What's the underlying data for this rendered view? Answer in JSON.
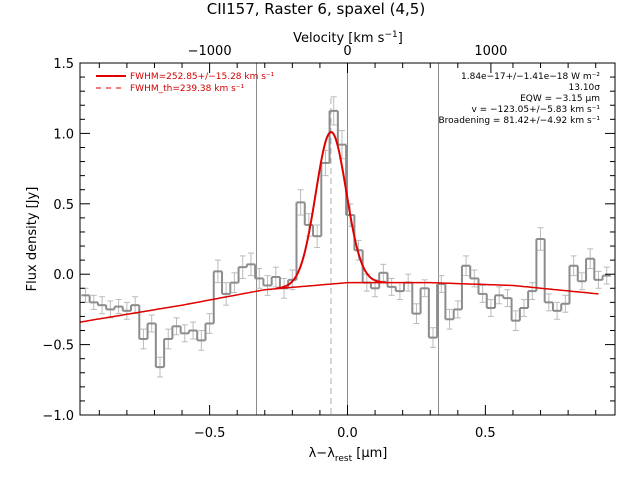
{
  "chart_data": {
    "type": "line",
    "title": "CII157, Raster 6, spaxel (4,5)",
    "xlabel_main": "λ−λ",
    "xlabel_sub": "rest",
    "xlabel_unit": "[μm]",
    "ylabel": "Flux density [Jy]",
    "top_axis_label_main": "Velocity [km s",
    "top_axis_label_exp": "−1",
    "top_axis_label_close": "]",
    "xlim": [
      -0.97,
      0.97
    ],
    "ylim": [
      -1.0,
      1.5
    ],
    "x_ticks": [
      {
        "value": -0.5,
        "label": "−0.5"
      },
      {
        "value": 0.0,
        "label": "0.0"
      },
      {
        "value": 0.5,
        "label": "0.5"
      }
    ],
    "y_ticks": [
      {
        "value": -1.0,
        "label": "−1.0"
      },
      {
        "value": -0.5,
        "label": "−0.5"
      },
      {
        "value": 0.0,
        "label": "0.0"
      },
      {
        "value": 0.5,
        "label": "0.5"
      },
      {
        "value": 1.0,
        "label": "1.0"
      },
      {
        "value": 1.5,
        "label": "1.5"
      }
    ],
    "top_ticks": [
      {
        "x": -0.5,
        "label": "−1000"
      },
      {
        "x": 0.0,
        "label": "0"
      },
      {
        "x": 0.52,
        "label": "1000"
      }
    ],
    "vlines_solid": [
      -0.33,
      0.0,
      0.33
    ],
    "vline_dashed": -0.06,
    "annotations": [
      "1.84e−17+/−1.41e−18 W m⁻²",
      "13.10σ",
      "EQW = −3.15 μm",
      "v = −123.05+/−5.83 km s⁻¹",
      "Broadening = 81.42+/−4.92 km s⁻¹"
    ],
    "legend": [
      {
        "label": "FWHM=252.85+/−15.28 km s⁻¹",
        "style": "solid"
      },
      {
        "label": "FWHM_th=239.38 km s⁻¹",
        "style": "dashed"
      }
    ],
    "colors": {
      "data": "#8c8c8c",
      "fit": "#e00000",
      "vline": "#8c8c8c",
      "axis": "#000000"
    },
    "spectrum": {
      "x": [
        -0.95,
        -0.92,
        -0.89,
        -0.86,
        -0.83,
        -0.8,
        -0.77,
        -0.74,
        -0.71,
        -0.68,
        -0.65,
        -0.62,
        -0.59,
        -0.56,
        -0.53,
        -0.5,
        -0.47,
        -0.44,
        -0.41,
        -0.38,
        -0.35,
        -0.32,
        -0.29,
        -0.26,
        -0.23,
        -0.2,
        -0.17,
        -0.14,
        -0.11,
        -0.08,
        -0.05,
        -0.02,
        0.01,
        0.04,
        0.07,
        0.1,
        0.13,
        0.16,
        0.19,
        0.22,
        0.25,
        0.28,
        0.31,
        0.34,
        0.37,
        0.4,
        0.43,
        0.46,
        0.49,
        0.52,
        0.55,
        0.58,
        0.61,
        0.64,
        0.67,
        0.7,
        0.73,
        0.76,
        0.79,
        0.82,
        0.85,
        0.88,
        0.91,
        0.94
      ],
      "y": [
        -0.15,
        -0.2,
        -0.22,
        -0.25,
        -0.23,
        -0.26,
        -0.22,
        -0.46,
        -0.35,
        -0.66,
        -0.46,
        -0.37,
        -0.42,
        -0.4,
        -0.47,
        -0.35,
        0.02,
        -0.14,
        -0.06,
        0.05,
        0.07,
        -0.03,
        -0.08,
        -0.02,
        -0.1,
        -0.04,
        0.51,
        0.35,
        0.27,
        0.79,
        1.16,
        0.92,
        0.42,
        0.17,
        -0.06,
        -0.1,
        0.01,
        -0.09,
        -0.12,
        -0.06,
        -0.28,
        -0.1,
        -0.45,
        -0.07,
        -0.32,
        -0.25,
        0.06,
        -0.03,
        -0.14,
        -0.24,
        -0.15,
        -0.17,
        -0.33,
        -0.24,
        -0.12,
        0.25,
        -0.2,
        -0.26,
        -0.21,
        0.06,
        -0.05,
        0.11,
        -0.04,
        -0.01
      ],
      "err": [
        0.05,
        0.05,
        0.06,
        0.06,
        0.05,
        0.06,
        0.06,
        0.07,
        0.06,
        0.07,
        0.07,
        0.06,
        0.06,
        0.06,
        0.07,
        0.07,
        0.08,
        0.08,
        0.07,
        0.08,
        0.08,
        0.07,
        0.07,
        0.07,
        0.07,
        0.07,
        0.09,
        0.08,
        0.08,
        0.09,
        0.1,
        0.1,
        0.08,
        0.07,
        0.06,
        0.06,
        0.06,
        0.06,
        0.06,
        0.06,
        0.07,
        0.06,
        0.07,
        0.06,
        0.07,
        0.06,
        0.07,
        0.06,
        0.06,
        0.06,
        0.06,
        0.06,
        0.07,
        0.06,
        0.06,
        0.08,
        0.06,
        0.06,
        0.06,
        0.07,
        0.06,
        0.07,
        0.06,
        0.06
      ]
    },
    "fit": {
      "continuum": {
        "x": [
          -0.97,
          -0.6,
          -0.3,
          0.0,
          0.3,
          0.6,
          0.91
        ],
        "y": [
          -0.34,
          -0.22,
          -0.11,
          -0.06,
          -0.06,
          -0.08,
          -0.14
        ]
      },
      "gaussian": {
        "center": -0.06,
        "amplitude": 1.08,
        "sigma": 0.055
      }
    }
  }
}
